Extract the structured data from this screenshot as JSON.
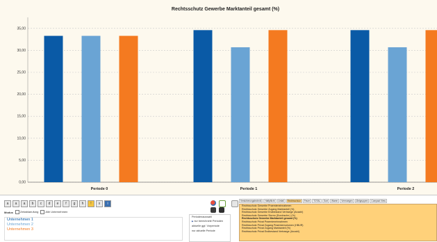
{
  "chart_data": {
    "type": "bar",
    "title": "Rechtsschutz Gewerbe Marktanteil gesamt (%)",
    "categories": [
      "Periode 0",
      "Periode 1",
      "Periode 2"
    ],
    "series": [
      {
        "name": "Unternehmen 1",
        "values": [
          33.3,
          34.6,
          34.6
        ]
      },
      {
        "name": "Unternehmen 2",
        "values": [
          33.3,
          30.7,
          30.7
        ]
      },
      {
        "name": "Unternehmen 3",
        "values": [
          33.3,
          34.6,
          34.6
        ]
      }
    ],
    "yticks": [
      "0,00",
      "5,00",
      "10,00",
      "15,00",
      "20,00",
      "25,00",
      "30,00",
      "35,00"
    ],
    "ylim": [
      0,
      37.5
    ],
    "grid": true,
    "colors": [
      "#0a5aa6",
      "#6aa4d4",
      "#f47a20"
    ]
  },
  "toolbar": {
    "buttons": [
      "a",
      "a",
      "a",
      "b",
      "c",
      "d",
      "e",
      "f",
      "g",
      "h",
      "!",
      "x",
      "i"
    ]
  },
  "options": {
    "label": "Modus",
    "option1": "Zeitablaeufung",
    "option2": "Alle Unternehmen"
  },
  "companies": [
    {
      "label": "Unternehmen 1",
      "color": "#0a5aa6"
    },
    {
      "label": "Unternehmen 2",
      "color": "#6aa4d4"
    },
    {
      "label": "Unternehmen 3",
      "color": "#f47a20"
    }
  ],
  "period": {
    "title": "Periodenauswahl",
    "options": [
      "nur berechnete Perioden",
      "aktuelle ggf. Vorperiode",
      "nur aktuelle Periode"
    ],
    "selected": 0
  },
  "tabs": [
    "Versicherungstechnik",
    "Haftpflicht",
    "Unfall",
    "Rechtsschutz",
    "Feuer",
    "TOTAL",
    "Sort",
    "Waren",
    "Vermoegen",
    "Zielgruppen",
    "Compact View"
  ],
  "active_tab": 3,
  "metrics": [
    "Rechtsschutz Gewerbe Praemieneinnahmen",
    "Rechtsschutz Gewerbe Zugang Marktanteil (%)",
    "Rechtsschutz Gewerbe Endbestand Vertraege (Anzahl)",
    "Rechtsschutz Gewerbe Storno (Durchschn.) (%)",
    "Rechtsschutz Gewerbe Marktanteil gesamt (%)",
    "Rechtsschutz Privat Praemieneinnahmen",
    "Rechtsschutz Privat Zugang Praemienvolumen (HBUR)",
    "Rechtsschutz Privat Zugang Marktanteil (%)",
    "Rechtsschutz Privat Endbestand Vertraege (Anzahl)"
  ],
  "active_metric": 4
}
